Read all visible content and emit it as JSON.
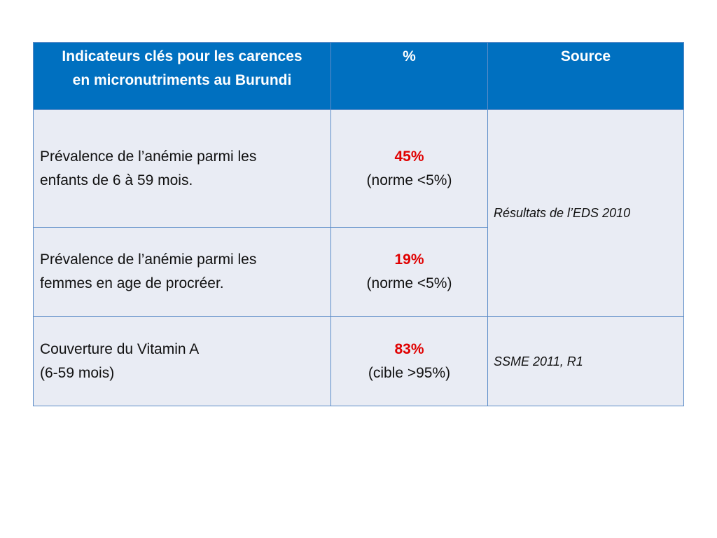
{
  "table": {
    "header": [
      [
        "Indicateurs clés pour les carences",
        "en micronutriments au Burundi"
      ],
      [
        "%"
      ],
      [
        "Source"
      ]
    ],
    "rows": [
      {
        "indicator": [
          "Prévalence de l’anémie  parmi les",
          "enfants de 6 à 59 mois."
        ],
        "value": "45%",
        "note": "(norme <5%)",
        "source": "Résultats  de l’EDS 2010",
        "source_rows": 2
      },
      {
        "indicator": [
          "Prévalence  de l’anémie  parmi les",
          "femmes en age de procréer."
        ],
        "value": "19%",
        "note": "(norme <5%)"
      },
      {
        "indicator": [
          "Couverture du Vitamin A",
          "(6-59 mois)"
        ],
        "value": "83%",
        "note": "(cible >95%)",
        "source": "SSME 2011, R1",
        "source_rows": 1
      }
    ]
  }
}
